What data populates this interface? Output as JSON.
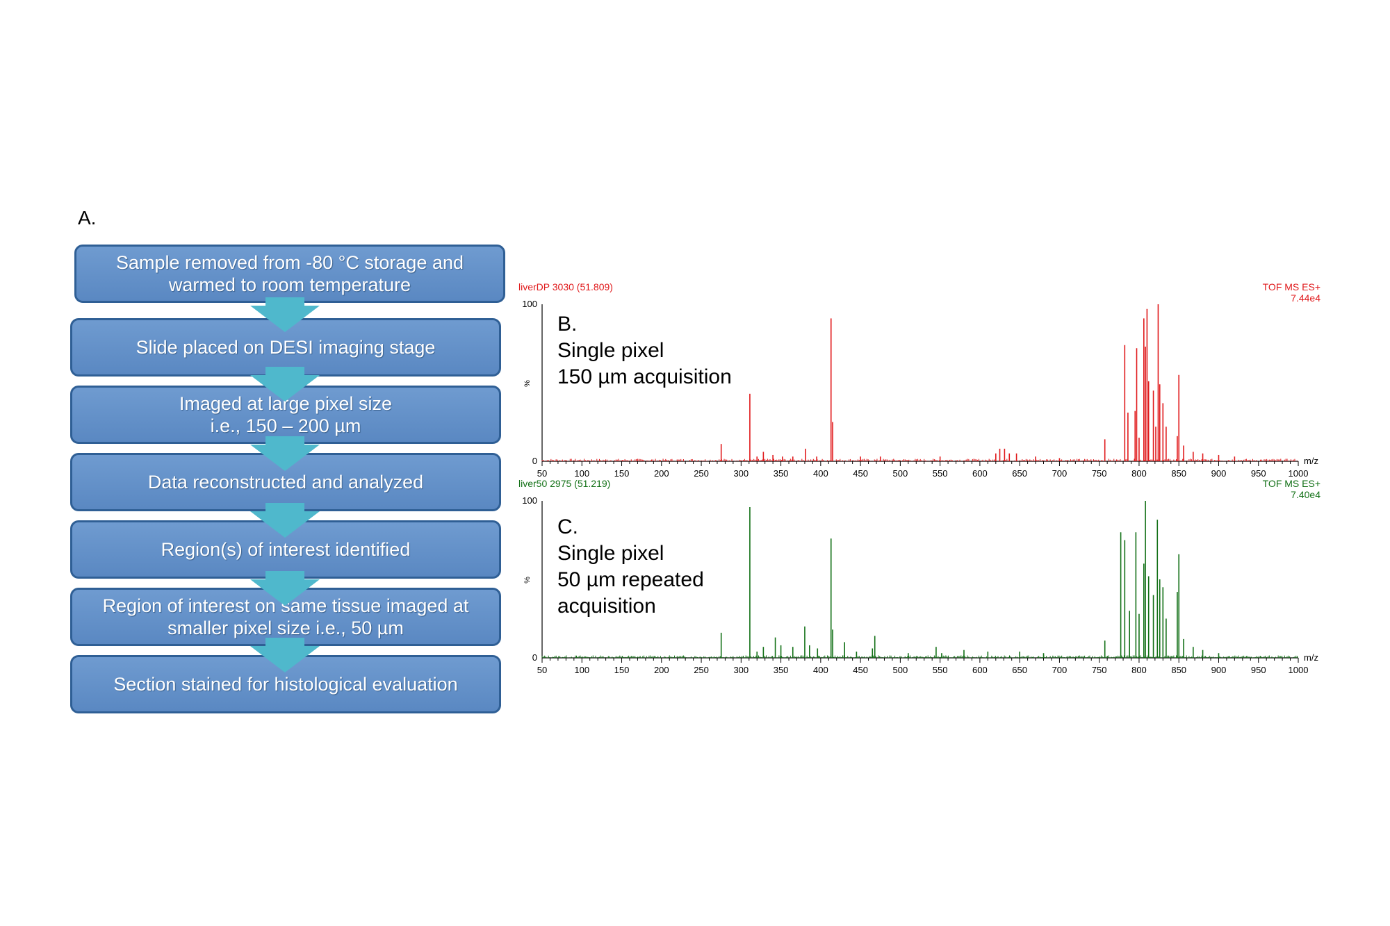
{
  "panel_a": {
    "label": "A.",
    "steps": [
      "Sample removed from -80 °C storage and\nwarmed to room temperature",
      "Slide placed on DESI imaging stage",
      "Imaged at large pixel size\ni.e., 150 – 200 µm",
      "Data reconstructed and analyzed",
      "Region(s) of interest identified",
      "Region of interest on same tissue imaged at\nsmaller pixel size i.e., 50 µm",
      "Section stained for histological evaluation"
    ]
  },
  "colors": {
    "box_fill": "#6394cc",
    "box_border": "#2f5f95",
    "arrow": "#4fb8cc",
    "spectrum_b": "#e0191b",
    "spectrum_c": "#127016"
  },
  "chart_data": [
    {
      "type": "bar",
      "panel_label": "B.",
      "label_line1": "Single pixel",
      "label_line2": "150 µm acquisition",
      "title_left": "liverDP 3030 (51.809)",
      "title_right": "TOF MS ES+",
      "intensity": "7.44e4",
      "ylabel": "%",
      "xlabel": "m/z",
      "y_ticks": [
        "100",
        "0"
      ],
      "ylim": [
        0,
        100
      ],
      "xlim": [
        50,
        1000
      ],
      "x_ticks": [
        "50",
        "100",
        "150",
        "200",
        "250",
        "300",
        "350",
        "400",
        "450",
        "500",
        "550",
        "600",
        "650",
        "700",
        "750",
        "800",
        "850",
        "900",
        "950",
        "1000"
      ],
      "peaks": [
        [
          275,
          11
        ],
        [
          311,
          43
        ],
        [
          320,
          3
        ],
        [
          328,
          6
        ],
        [
          340,
          4
        ],
        [
          352,
          3
        ],
        [
          365,
          3
        ],
        [
          381,
          8
        ],
        [
          395,
          3
        ],
        [
          413,
          91
        ],
        [
          415,
          25
        ],
        [
          450,
          3
        ],
        [
          475,
          3
        ],
        [
          550,
          3
        ],
        [
          620,
          5
        ],
        [
          625,
          8
        ],
        [
          631,
          8
        ],
        [
          637,
          5
        ],
        [
          646,
          5
        ],
        [
          670,
          3
        ],
        [
          700,
          2
        ],
        [
          757,
          14
        ],
        [
          782,
          74
        ],
        [
          786,
          31
        ],
        [
          795,
          32
        ],
        [
          797,
          72
        ],
        [
          800,
          15
        ],
        [
          806,
          91
        ],
        [
          808,
          73
        ],
        [
          810,
          97
        ],
        [
          812,
          51
        ],
        [
          818,
          45
        ],
        [
          821,
          22
        ],
        [
          824,
          100
        ],
        [
          826,
          49
        ],
        [
          830,
          37
        ],
        [
          834,
          22
        ],
        [
          848,
          16
        ],
        [
          850,
          55
        ],
        [
          856,
          10
        ],
        [
          868,
          6
        ],
        [
          880,
          5
        ],
        [
          900,
          4
        ],
        [
          920,
          3
        ]
      ]
    },
    {
      "type": "bar",
      "panel_label": "C.",
      "label_line1": "Single pixel",
      "label_line2": "50 µm repeated",
      "label_line3": "acquisition",
      "title_left": "liver50 2975 (51.219)",
      "title_right": "TOF MS ES+",
      "intensity": "7.40e4",
      "ylabel": "%",
      "xlabel": "m/z",
      "y_ticks": [
        "100",
        "0"
      ],
      "ylim": [
        0,
        100
      ],
      "xlim": [
        50,
        1000
      ],
      "x_ticks": [
        "50",
        "100",
        "150",
        "200",
        "250",
        "300",
        "350",
        "400",
        "450",
        "500",
        "550",
        "600",
        "650",
        "700",
        "750",
        "800",
        "850",
        "900",
        "950",
        "1000"
      ],
      "peaks": [
        [
          275,
          16
        ],
        [
          311,
          96
        ],
        [
          320,
          4
        ],
        [
          328,
          7
        ],
        [
          343,
          13
        ],
        [
          350,
          8
        ],
        [
          365,
          7
        ],
        [
          380,
          20
        ],
        [
          386,
          8
        ],
        [
          396,
          6
        ],
        [
          413,
          76
        ],
        [
          415,
          18
        ],
        [
          430,
          10
        ],
        [
          445,
          4
        ],
        [
          465,
          6
        ],
        [
          468,
          14
        ],
        [
          510,
          3
        ],
        [
          545,
          7
        ],
        [
          552,
          3
        ],
        [
          580,
          5
        ],
        [
          610,
          4
        ],
        [
          650,
          4
        ],
        [
          680,
          3
        ],
        [
          757,
          11
        ],
        [
          777,
          80
        ],
        [
          782,
          75
        ],
        [
          788,
          30
        ],
        [
          796,
          80
        ],
        [
          800,
          28
        ],
        [
          806,
          60
        ],
        [
          808,
          100
        ],
        [
          812,
          52
        ],
        [
          818,
          40
        ],
        [
          823,
          88
        ],
        [
          826,
          50
        ],
        [
          830,
          45
        ],
        [
          834,
          25
        ],
        [
          848,
          42
        ],
        [
          850,
          66
        ],
        [
          856,
          12
        ],
        [
          868,
          7
        ],
        [
          880,
          5
        ],
        [
          900,
          3
        ]
      ]
    }
  ]
}
